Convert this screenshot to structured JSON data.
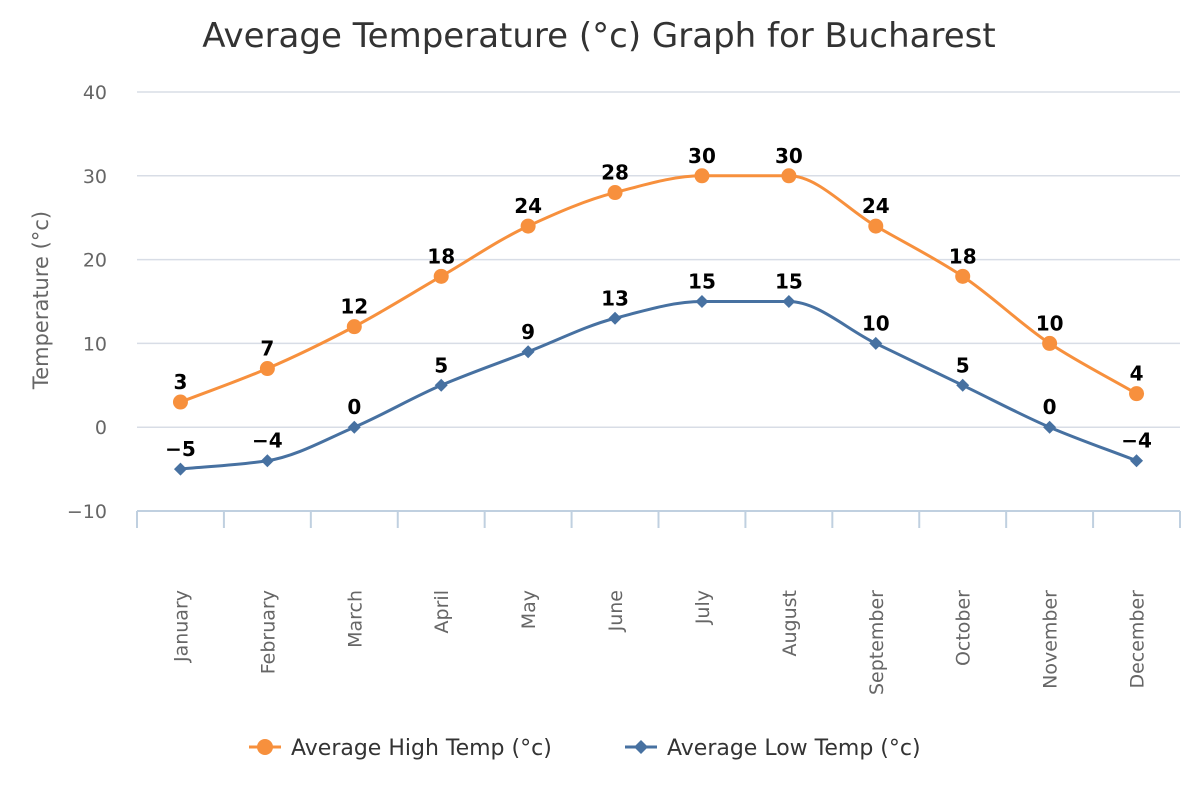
{
  "chart_data": {
    "type": "line",
    "title": "Average Temperature (°c) Graph for Bucharest",
    "xlabel": "",
    "ylabel": "Temperature (°c)",
    "ylim": [
      -10,
      40
    ],
    "yticks": [
      "40",
      "30",
      "20",
      "10",
      "0",
      "−10"
    ],
    "categories": [
      "January",
      "February",
      "March",
      "April",
      "May",
      "June",
      "July",
      "August",
      "September",
      "October",
      "November",
      "December"
    ],
    "series": [
      {
        "name": "Average High Temp (°c)",
        "color": "#f7903d",
        "marker": "circle",
        "values": [
          3,
          7,
          12,
          18,
          24,
          28,
          30,
          30,
          24,
          18,
          10,
          4
        ],
        "labels": [
          "3",
          "7",
          "12",
          "18",
          "24",
          "28",
          "30",
          "30",
          "24",
          "18",
          "10",
          "4"
        ]
      },
      {
        "name": "Average Low Temp (°c)",
        "color": "#4771a1",
        "marker": "diamond",
        "values": [
          -5,
          -4,
          0,
          5,
          9,
          13,
          15,
          15,
          10,
          5,
          0,
          -4
        ],
        "labels": [
          "−5",
          "−4",
          "0",
          "5",
          "9",
          "13",
          "15",
          "15",
          "10",
          "5",
          "0",
          "−4"
        ]
      }
    ],
    "grid": true,
    "legend_position": "bottom-center"
  }
}
